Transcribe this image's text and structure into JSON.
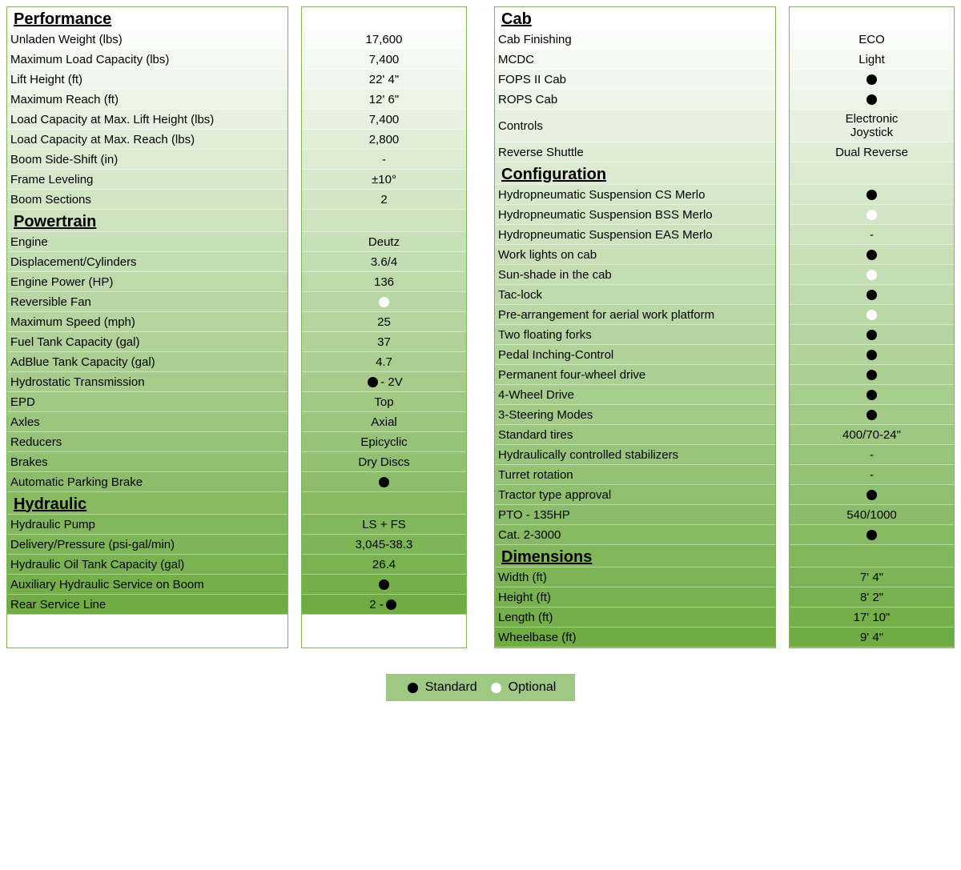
{
  "gradient": {
    "top": "#ffffff",
    "bottom": "#6fac44"
  },
  "left": {
    "sections": [
      {
        "title": "Performance",
        "rows": [
          {
            "label": "Unladen Weight (lbs)",
            "value": "17,600"
          },
          {
            "label": "Maximum Load Capacity (lbs)",
            "value": "7,400"
          },
          {
            "label": "Lift Height (ft)",
            "value": "22' 4\""
          },
          {
            "label": "Maximum Reach (ft)",
            "value": "12' 6\""
          },
          {
            "label": "Load Capacity at Max. Lift Height (lbs)",
            "value": "7,400"
          },
          {
            "label": "Load Capacity at Max. Reach (lbs)",
            "value": "2,800"
          },
          {
            "label": "Boom Side-Shift (in)",
            "value": "-"
          },
          {
            "label": "Frame Leveling",
            "value": "±10°"
          },
          {
            "label": "Boom Sections",
            "value": "2"
          }
        ]
      },
      {
        "title": "Powertrain",
        "rows": [
          {
            "label": "Engine",
            "value": "Deutz"
          },
          {
            "label": "Displacement/Cylinders",
            "value": "3.6/4"
          },
          {
            "label": "Engine Power (HP)",
            "value": "136"
          },
          {
            "label": "Reversible Fan",
            "value": "",
            "dot": "white"
          },
          {
            "label": "Maximum Speed (mph)",
            "value": "25"
          },
          {
            "label": "Fuel Tank Capacity (gal)",
            "value": "37"
          },
          {
            "label": "AdBlue Tank Capacity (gal)",
            "value": "4.7"
          },
          {
            "label": "Hydrostatic Transmission",
            "value": " - 2V",
            "dot": "black",
            "dot_before": true
          },
          {
            "label": "EPD",
            "value": "Top"
          },
          {
            "label": "Axles",
            "value": "Axial"
          },
          {
            "label": "Reducers",
            "value": "Epicyclic"
          },
          {
            "label": "Brakes",
            "value": "Dry Discs"
          },
          {
            "label": "Automatic Parking Brake",
            "value": "",
            "dot": "black"
          }
        ]
      },
      {
        "title": "Hydraulic",
        "rows": [
          {
            "label": "Hydraulic Pump",
            "value": "LS + FS"
          },
          {
            "label": "Delivery/Pressure (psi-gal/min)",
            "value": "3,045-38.3"
          },
          {
            "label": "Hydraulic Oil Tank Capacity (gal)",
            "value": "26.4"
          },
          {
            "label": "Auxiliary Hydraulic Service on Boom",
            "value": "",
            "dot": "black"
          },
          {
            "label": "Rear Service Line",
            "value": "2 - ",
            "dot": "black",
            "dot_after": true
          }
        ]
      }
    ]
  },
  "right": {
    "sections": [
      {
        "title": "Cab",
        "rows": [
          {
            "label": "Cab Finishing",
            "value": "ECO"
          },
          {
            "label": "MCDC",
            "value": "Light"
          },
          {
            "label": "FOPS II Cab",
            "value": "",
            "dot": "black"
          },
          {
            "label": "ROPS Cab",
            "value": "",
            "dot": "black"
          },
          {
            "label": "Controls",
            "value": "Electronic\nJoystick",
            "tall": true
          },
          {
            "label": "Reverse Shuttle",
            "value": "Dual Reverse"
          }
        ]
      },
      {
        "title": "Configuration",
        "rows": [
          {
            "label": "Hydropneumatic Suspension CS Merlo",
            "value": "",
            "dot": "black"
          },
          {
            "label": "Hydropneumatic Suspension BSS Merlo",
            "value": "",
            "dot": "white"
          },
          {
            "label": "Hydropneumatic Suspension EAS Merlo",
            "value": "-"
          },
          {
            "label": "Work lights on cab",
            "value": "",
            "dot": "black"
          },
          {
            "label": "Sun-shade in the cab",
            "value": "",
            "dot": "white"
          },
          {
            "label": "Tac-lock",
            "value": "",
            "dot": "black"
          },
          {
            "label": "Pre-arrangement for aerial work platform",
            "value": "",
            "dot": "white"
          },
          {
            "label": "Two floating forks",
            "value": "",
            "dot": "black"
          },
          {
            "label": "Pedal Inching-Control",
            "value": "",
            "dot": "black"
          },
          {
            "label": "Permanent four-wheel drive",
            "value": "",
            "dot": "black"
          },
          {
            "label": "4-Wheel Drive",
            "value": "",
            "dot": "black"
          },
          {
            "label": "3-Steering Modes",
            "value": "",
            "dot": "black"
          },
          {
            "label": "Standard tires",
            "value": "400/70-24\""
          },
          {
            "label": "Hydraulically controlled stabilizers",
            "value": "-"
          },
          {
            "label": "Turret rotation",
            "value": "-"
          },
          {
            "label": "Tractor type approval",
            "value": "",
            "dot": "black"
          },
          {
            "label": "PTO - 135HP",
            "value": "540/1000"
          },
          {
            "label": "Cat. 2-3000",
            "value": "",
            "dot": "black"
          }
        ]
      },
      {
        "title": "Dimensions",
        "rows": [
          {
            "label": "Width (ft)",
            "value": "7' 4\""
          },
          {
            "label": "Height (ft)",
            "value": "8' 2\""
          },
          {
            "label": "Length (ft)",
            "value": "17' 10\""
          },
          {
            "label": "Wheelbase (ft)",
            "value": "9' 4\""
          }
        ]
      }
    ]
  },
  "legend": {
    "standard": "Standard",
    "optional": "Optional"
  }
}
